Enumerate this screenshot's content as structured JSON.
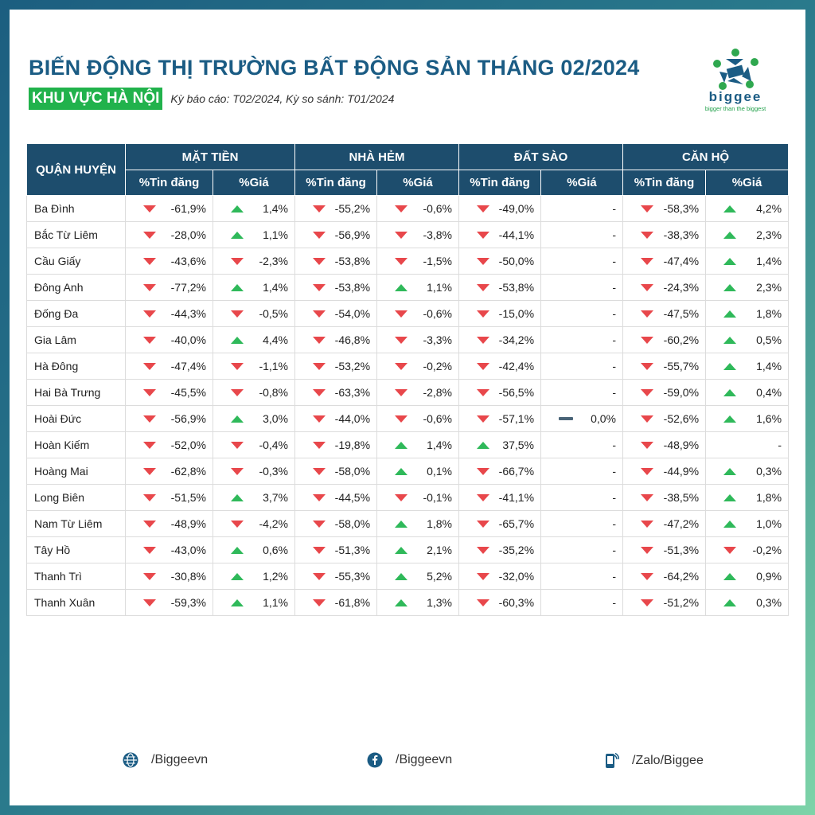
{
  "header": {
    "title": "BIẾN ĐỘNG THỊ TRƯỜNG BẤT ĐỘNG SẢN THÁNG 02/2024",
    "region": "KHU VỰC HÀ NỘI",
    "period": "Kỳ báo cáo: T02/2024, Kỳ so sánh: T01/2024"
  },
  "logo": {
    "text": "biggee",
    "tagline": "bigger than the biggest"
  },
  "colors": {
    "navy": "#1d4d6d",
    "title": "#1b5c84",
    "green": "#21b24c",
    "down": "#e8474b",
    "up": "#2fb95a"
  },
  "table": {
    "district_header": "QUẬN HUYỆN",
    "groups": [
      "MẶT TIỀN",
      "NHÀ HẺM",
      "ĐẤT SÀO",
      "CĂN HỘ"
    ],
    "sub_listing": "%Tin đăng",
    "sub_price": "%Giá",
    "rows": [
      {
        "name": "Ba Đình",
        "values": [
          "-61,9%",
          "1,4%",
          "-55,2%",
          "-0,6%",
          "-49,0%",
          "-",
          "-58,3%",
          "4,2%"
        ],
        "dirs": [
          "down",
          "up",
          "down",
          "down",
          "down",
          "none",
          "down",
          "up"
        ]
      },
      {
        "name": "Bắc Từ Liêm",
        "values": [
          "-28,0%",
          "1,1%",
          "-56,9%",
          "-3,8%",
          "-44,1%",
          "-",
          "-38,3%",
          "2,3%"
        ],
        "dirs": [
          "down",
          "up",
          "down",
          "down",
          "down",
          "none",
          "down",
          "up"
        ]
      },
      {
        "name": "Cầu Giấy",
        "values": [
          "-43,6%",
          "-2,3%",
          "-53,8%",
          "-1,5%",
          "-50,0%",
          "-",
          "-47,4%",
          "1,4%"
        ],
        "dirs": [
          "down",
          "down",
          "down",
          "down",
          "down",
          "none",
          "down",
          "up"
        ]
      },
      {
        "name": "Đông Anh",
        "values": [
          "-77,2%",
          "1,4%",
          "-53,8%",
          "1,1%",
          "-53,8%",
          "-",
          "-24,3%",
          "2,3%"
        ],
        "dirs": [
          "down",
          "up",
          "down",
          "up",
          "down",
          "none",
          "down",
          "up"
        ]
      },
      {
        "name": "Đống Đa",
        "values": [
          "-44,3%",
          "-0,5%",
          "-54,0%",
          "-0,6%",
          "-15,0%",
          "-",
          "-47,5%",
          "1,8%"
        ],
        "dirs": [
          "down",
          "down",
          "down",
          "down",
          "down",
          "none",
          "down",
          "up"
        ]
      },
      {
        "name": "Gia Lâm",
        "values": [
          "-40,0%",
          "4,4%",
          "-46,8%",
          "-3,3%",
          "-34,2%",
          "-",
          "-60,2%",
          "0,5%"
        ],
        "dirs": [
          "down",
          "up",
          "down",
          "down",
          "down",
          "none",
          "down",
          "up"
        ]
      },
      {
        "name": "Hà Đông",
        "values": [
          "-47,4%",
          "-1,1%",
          "-53,2%",
          "-0,2%",
          "-42,4%",
          "-",
          "-55,7%",
          "1,4%"
        ],
        "dirs": [
          "down",
          "down",
          "down",
          "down",
          "down",
          "none",
          "down",
          "up"
        ]
      },
      {
        "name": "Hai Bà Trưng",
        "values": [
          "-45,5%",
          "-0,8%",
          "-63,3%",
          "-2,8%",
          "-56,5%",
          "-",
          "-59,0%",
          "0,4%"
        ],
        "dirs": [
          "down",
          "down",
          "down",
          "down",
          "down",
          "none",
          "down",
          "up"
        ]
      },
      {
        "name": "Hoài Đức",
        "values": [
          "-56,9%",
          "3,0%",
          "-44,0%",
          "-0,6%",
          "-57,1%",
          "0,0%",
          "-52,6%",
          "1,6%"
        ],
        "dirs": [
          "down",
          "up",
          "down",
          "down",
          "down",
          "flat",
          "down",
          "up"
        ]
      },
      {
        "name": "Hoàn Kiếm",
        "values": [
          "-52,0%",
          "-0,4%",
          "-19,8%",
          "1,4%",
          "37,5%",
          "-",
          "-48,9%",
          "-"
        ],
        "dirs": [
          "down",
          "down",
          "down",
          "up",
          "up",
          "none",
          "down",
          "none"
        ]
      },
      {
        "name": "Hoàng Mai",
        "values": [
          "-62,8%",
          "-0,3%",
          "-58,0%",
          "0,1%",
          "-66,7%",
          "-",
          "-44,9%",
          "0,3%"
        ],
        "dirs": [
          "down",
          "down",
          "down",
          "up",
          "down",
          "none",
          "down",
          "up"
        ]
      },
      {
        "name": "Long Biên",
        "values": [
          "-51,5%",
          "3,7%",
          "-44,5%",
          "-0,1%",
          "-41,1%",
          "-",
          "-38,5%",
          "1,8%"
        ],
        "dirs": [
          "down",
          "up",
          "down",
          "down",
          "down",
          "none",
          "down",
          "up"
        ]
      },
      {
        "name": "Nam Từ Liêm",
        "values": [
          "-48,9%",
          "-4,2%",
          "-58,0%",
          "1,8%",
          "-65,7%",
          "-",
          "-47,2%",
          "1,0%"
        ],
        "dirs": [
          "down",
          "down",
          "down",
          "up",
          "down",
          "none",
          "down",
          "up"
        ]
      },
      {
        "name": "Tây Hồ",
        "values": [
          "-43,0%",
          "0,6%",
          "-51,3%",
          "2,1%",
          "-35,2%",
          "-",
          "-51,3%",
          "-0,2%"
        ],
        "dirs": [
          "down",
          "up",
          "down",
          "up",
          "down",
          "none",
          "down",
          "down"
        ]
      },
      {
        "name": "Thanh Trì",
        "values": [
          "-30,8%",
          "1,2%",
          "-55,3%",
          "5,2%",
          "-32,0%",
          "-",
          "-64,2%",
          "0,9%"
        ],
        "dirs": [
          "down",
          "up",
          "down",
          "up",
          "down",
          "none",
          "down",
          "up"
        ]
      },
      {
        "name": "Thanh Xuân",
        "values": [
          "-59,3%",
          "1,1%",
          "-61,8%",
          "1,3%",
          "-60,3%",
          "-",
          "-51,2%",
          "0,3%"
        ],
        "dirs": [
          "down",
          "up",
          "down",
          "up",
          "down",
          "none",
          "down",
          "up"
        ]
      }
    ]
  },
  "footer": {
    "website": "/Biggeevn",
    "facebook": "/Biggeevn",
    "zalo": "/Zalo/Biggee"
  }
}
